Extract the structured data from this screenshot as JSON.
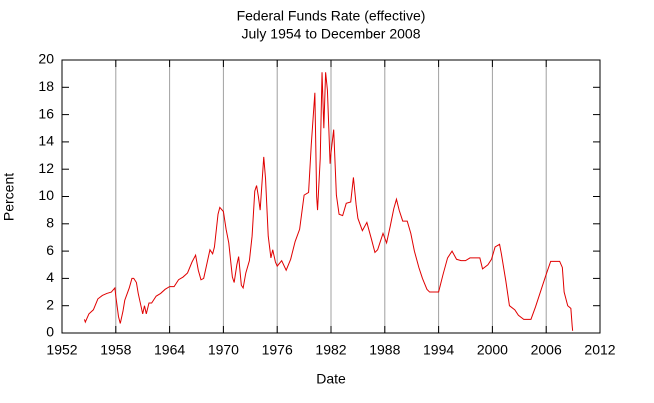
{
  "chart_data": {
    "type": "line",
    "title": "Federal Funds Rate (effective)",
    "subtitle": "July 1954 to December 2008",
    "x_label": "Date",
    "y_label": "Percent",
    "xlim": [
      1952,
      2012
    ],
    "xticks": [
      1952,
      1958,
      1964,
      1970,
      1976,
      1982,
      1988,
      1994,
      2000,
      2006,
      2012
    ],
    "ylim": [
      0,
      20
    ],
    "yticks": [
      0,
      2,
      4,
      6,
      8,
      10,
      12,
      14,
      16,
      18,
      20
    ],
    "grid": "x",
    "x": [
      1954.5,
      1954.6,
      1955.0,
      1955.5,
      1956.0,
      1956.5,
      1957.0,
      1957.5,
      1957.9,
      1958.0,
      1958.3,
      1958.5,
      1958.8,
      1959.0,
      1959.5,
      1959.8,
      1960.0,
      1960.3,
      1960.5,
      1960.8,
      1961.0,
      1961.2,
      1961.4,
      1961.7,
      1962.0,
      1962.5,
      1963.0,
      1963.5,
      1964.0,
      1964.5,
      1965.0,
      1965.5,
      1966.0,
      1966.5,
      1966.9,
      1967.2,
      1967.5,
      1967.8,
      1968.0,
      1968.5,
      1968.8,
      1969.0,
      1969.4,
      1969.6,
      1970.0,
      1970.3,
      1970.6,
      1971.0,
      1971.2,
      1971.5,
      1971.7,
      1972.0,
      1972.2,
      1972.5,
      1972.9,
      1973.2,
      1973.5,
      1973.7,
      1973.9,
      1974.1,
      1974.5,
      1974.7,
      1975.0,
      1975.3,
      1975.5,
      1975.8,
      1976.0,
      1976.5,
      1977.0,
      1977.5,
      1978.0,
      1978.5,
      1979.0,
      1979.5,
      1979.8,
      1980.2,
      1980.4,
      1980.5,
      1980.8,
      1981.0,
      1981.2,
      1981.4,
      1981.6,
      1981.9,
      1982.0,
      1982.3,
      1982.6,
      1982.9,
      1983.3,
      1983.7,
      1984.2,
      1984.5,
      1984.8,
      1985.0,
      1985.5,
      1986.0,
      1986.5,
      1986.9,
      1987.2,
      1987.5,
      1987.8,
      1988.2,
      1988.6,
      1989.0,
      1989.3,
      1989.6,
      1990.0,
      1990.5,
      1990.9,
      1991.3,
      1991.8,
      1992.2,
      1992.7,
      1993.0,
      1993.5,
      1994.0,
      1994.5,
      1995.0,
      1995.5,
      1996.0,
      1996.5,
      1997.0,
      1997.5,
      1998.0,
      1998.6,
      1998.9,
      1999.5,
      1999.9,
      2000.3,
      2000.8,
      2001.0,
      2001.5,
      2001.9,
      2002.5,
      2002.9,
      2003.5,
      2004.3,
      2004.8,
      2005.5,
      2006.0,
      2006.5,
      2007.5,
      2007.8,
      2008.0,
      2008.4,
      2008.75,
      2008.9,
      2008.95
    ],
    "series": [
      {
        "name": "Federal Funds Rate",
        "color": "#e00000",
        "values": [
          1.0,
          0.8,
          1.4,
          1.7,
          2.5,
          2.75,
          2.9,
          3.0,
          3.3,
          2.7,
          1.2,
          0.7,
          1.6,
          2.4,
          3.3,
          4.0,
          4.0,
          3.7,
          2.9,
          2.0,
          1.4,
          2.0,
          1.4,
          2.2,
          2.2,
          2.7,
          2.9,
          3.2,
          3.4,
          3.4,
          3.9,
          4.1,
          4.4,
          5.2,
          5.7,
          4.6,
          3.9,
          4.0,
          4.6,
          6.1,
          5.8,
          6.3,
          8.7,
          9.2,
          8.9,
          7.6,
          6.6,
          4.1,
          3.7,
          5.0,
          5.6,
          3.5,
          3.3,
          4.4,
          5.3,
          7.1,
          10.4,
          10.8,
          10.0,
          9.0,
          12.9,
          11.3,
          7.1,
          5.5,
          6.1,
          5.2,
          4.9,
          5.3,
          4.6,
          5.4,
          6.7,
          7.6,
          10.1,
          10.3,
          13.8,
          17.6,
          10.0,
          9.0,
          12.8,
          19.1,
          15.0,
          19.1,
          17.8,
          12.4,
          13.2,
          14.9,
          10.1,
          8.7,
          8.6,
          9.5,
          9.6,
          11.4,
          9.4,
          8.4,
          7.5,
          8.1,
          6.9,
          5.9,
          6.1,
          6.7,
          7.3,
          6.6,
          7.8,
          9.1,
          9.8,
          9.0,
          8.2,
          8.2,
          7.3,
          6.0,
          4.8,
          4.0,
          3.2,
          3.0,
          3.0,
          3.0,
          4.3,
          5.5,
          6.0,
          5.4,
          5.3,
          5.3,
          5.5,
          5.5,
          5.5,
          4.7,
          5.0,
          5.4,
          6.3,
          6.5,
          5.8,
          3.8,
          2.0,
          1.7,
          1.3,
          1.0,
          1.0,
          1.9,
          3.3,
          4.3,
          5.25,
          5.25,
          4.8,
          3.0,
          2.0,
          1.8,
          0.5,
          0.16
        ]
      }
    ]
  }
}
